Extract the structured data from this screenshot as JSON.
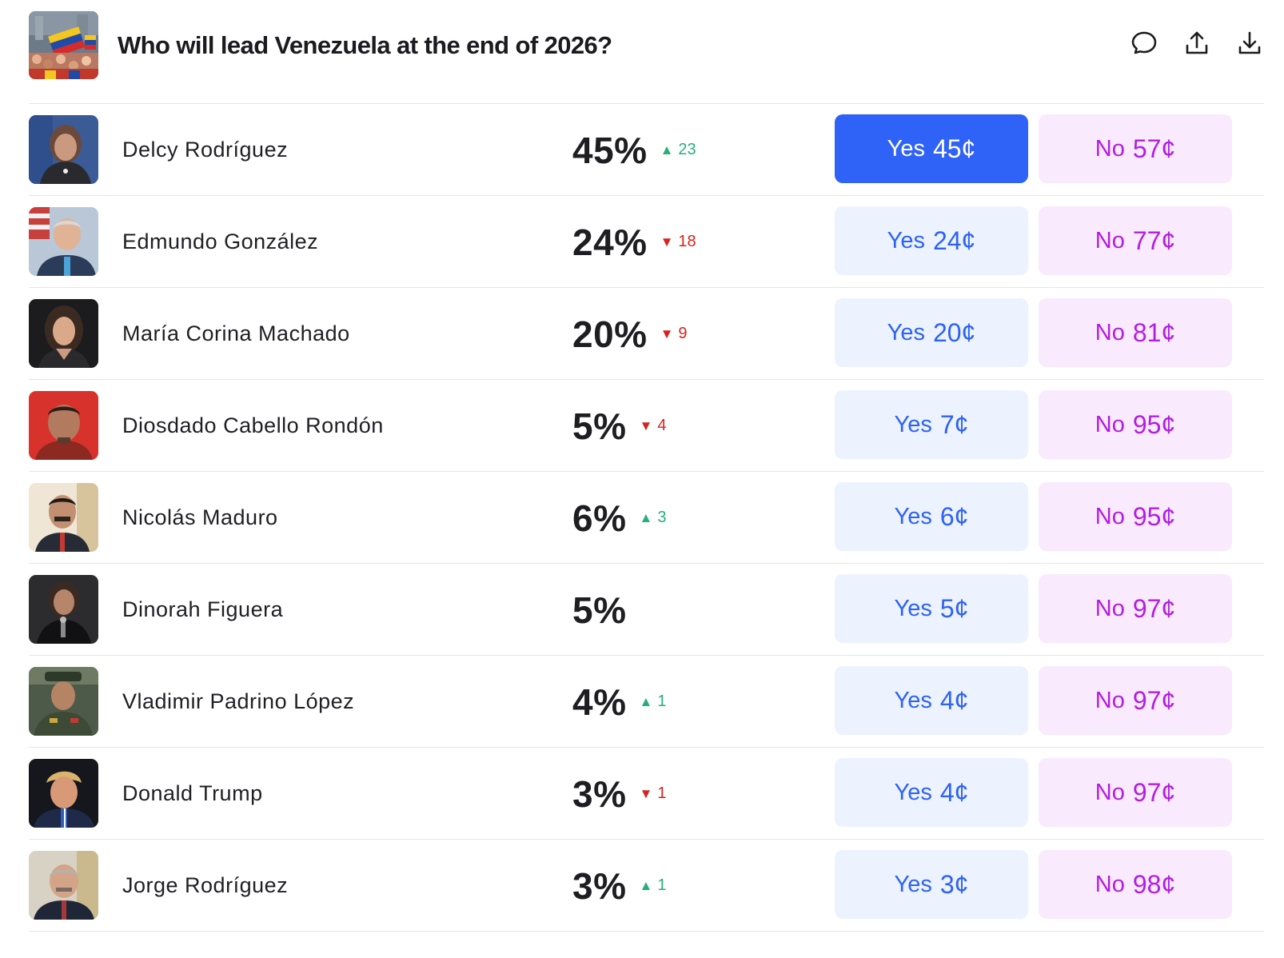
{
  "market": {
    "title": "Who will lead Venezuela at the end of 2026?"
  },
  "colors": {
    "yes_active_bg": "#2f62f6",
    "yes_bg": "#ecf2fe",
    "yes_text": "#2d62f5",
    "no_bg": "#f9eafd",
    "no_text": "#b21ee0",
    "up": "#24b07a",
    "down": "#d6231d"
  },
  "header_icons": [
    "comment-icon",
    "share-icon",
    "download-icon"
  ],
  "outcomes": [
    {
      "name": "Delcy Rodríguez",
      "pct": "45%",
      "delta_dir": "up",
      "delta": "23",
      "yes_label": "Yes",
      "yes_price": "45¢",
      "no_label": "No",
      "no_price": "57¢",
      "selected": true
    },
    {
      "name": "Edmundo González",
      "pct": "24%",
      "delta_dir": "down",
      "delta": "18",
      "yes_label": "Yes",
      "yes_price": "24¢",
      "no_label": "No",
      "no_price": "77¢"
    },
    {
      "name": "María Corina Machado",
      "pct": "20%",
      "delta_dir": "down",
      "delta": "9",
      "yes_label": "Yes",
      "yes_price": "20¢",
      "no_label": "No",
      "no_price": "81¢"
    },
    {
      "name": "Diosdado Cabello Rondón",
      "pct": "5%",
      "delta_dir": "down",
      "delta": "4",
      "yes_label": "Yes",
      "yes_price": "7¢",
      "no_label": "No",
      "no_price": "95¢"
    },
    {
      "name": "Nicolás Maduro",
      "pct": "6%",
      "delta_dir": "up",
      "delta": "3",
      "yes_label": "Yes",
      "yes_price": "6¢",
      "no_label": "No",
      "no_price": "95¢"
    },
    {
      "name": "Dinorah Figuera",
      "pct": "5%",
      "delta_dir": "",
      "delta": "",
      "yes_label": "Yes",
      "yes_price": "5¢",
      "no_label": "No",
      "no_price": "97¢"
    },
    {
      "name": "Vladimir Padrino López",
      "pct": "4%",
      "delta_dir": "up",
      "delta": "1",
      "yes_label": "Yes",
      "yes_price": "4¢",
      "no_label": "No",
      "no_price": "97¢"
    },
    {
      "name": "Donald Trump",
      "pct": "3%",
      "delta_dir": "down",
      "delta": "1",
      "yes_label": "Yes",
      "yes_price": "4¢",
      "no_label": "No",
      "no_price": "97¢"
    },
    {
      "name": "Jorge Rodríguez",
      "pct": "3%",
      "delta_dir": "up",
      "delta": "1",
      "yes_label": "Yes",
      "yes_price": "3¢",
      "no_label": "No",
      "no_price": "98¢"
    }
  ]
}
